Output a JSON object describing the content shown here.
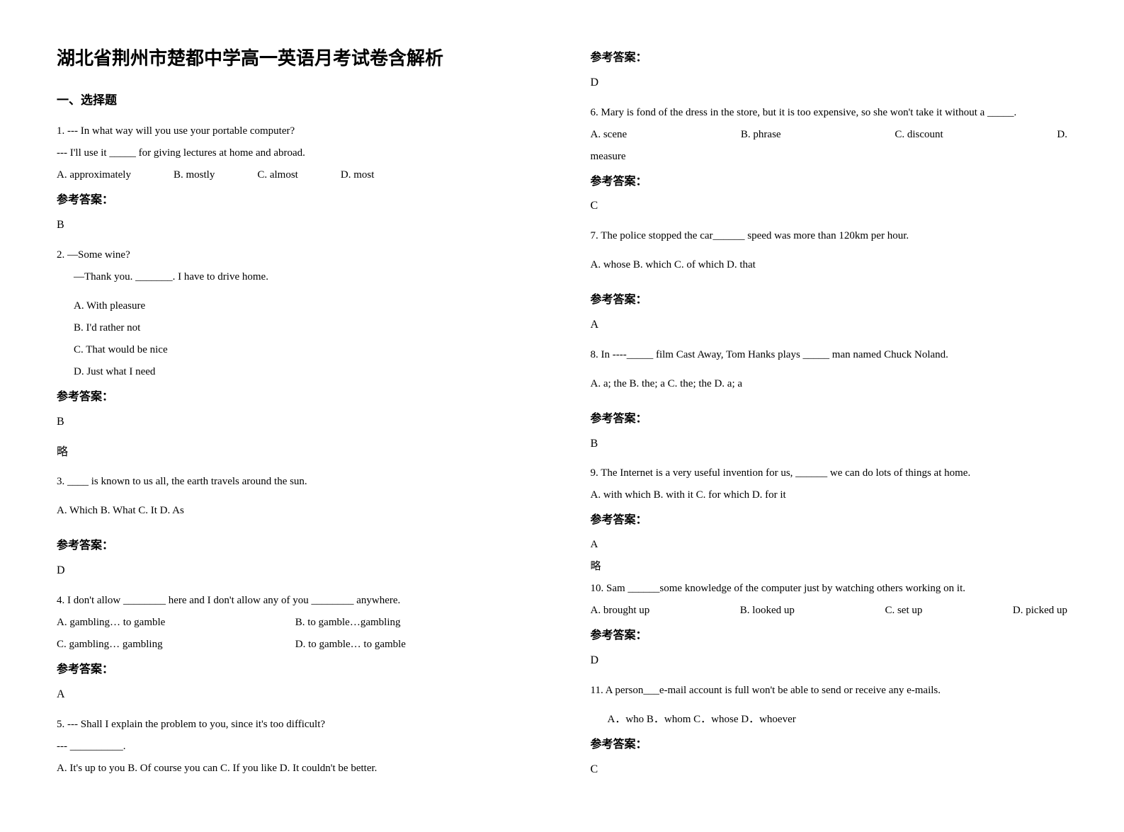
{
  "title": "湖北省荆州市楚都中学高一英语月考试卷含解析",
  "section1_heading": "一、选择题",
  "answer_label": "参考答案：",
  "note_omit": "略",
  "q1": {
    "line1": "1. --- In what way will you use your portable computer?",
    "line2": "--- I'll use it _____ for giving lectures at home and abroad.",
    "optA": "A. approximately",
    "optB": "B. mostly",
    "optC": "C. almost",
    "optD": "D. most",
    "answer": "B"
  },
  "q2": {
    "line1": "2. —Some wine?",
    "line2": "—Thank you. _______. I have to drive home.",
    "optA": "A. With pleasure",
    "optB": "B. I'd rather not",
    "optC": "C. That would be nice",
    "optD": "D. Just what I need",
    "answer": "B"
  },
  "q3": {
    "line1": "3. ____ is known to us all, the earth travels around the sun.",
    "opts": "A. Which    B. What    C. It    D. As",
    "answer": "D"
  },
  "q4": {
    "line1": "4. I don't allow ________ here and I don't allow any of you ________ anywhere.",
    "optA": "A. gambling… to gamble",
    "optB": "B. to gamble…gambling",
    "optC": "C. gambling… gambling",
    "optD": "D. to gamble… to gamble",
    "answer": "A"
  },
  "q5": {
    "line1": "5. --- Shall I explain the problem to you, since it's too difficult?",
    "line2": "--- __________.",
    "opts": "A. It's up to you   B. Of course you can   C. If you like   D. It couldn't be better.",
    "answer": "D"
  },
  "q6": {
    "line1": "6. Mary is fond of the dress in the store, but it is too expensive, so she won't take it without a _____.",
    "optA": "A.  scene",
    "optB": "B. phrase",
    "optC": "C. discount",
    "optD": "D. ",
    "line2": "measure",
    "answer": "C"
  },
  "q7": {
    "line1": "7. The police stopped the car______ speed was more than 120km per hour.",
    "opts": "A. whose   B. which    C. of which    D. that",
    "answer": "A"
  },
  "q8": {
    "line1": "8. In ----_____ film Cast Away, Tom Hanks plays _____ man named Chuck Noland.",
    "opts": "A. a; the   B. the; a        C. the; the    D. a; a",
    "answer": "B"
  },
  "q9": {
    "line1": "9. The Internet is a very useful invention for us, ______ we can do lots of things at home.",
    "opts": "  A. with which   B. with it   C. for which   D. for it",
    "answer": "A"
  },
  "q10": {
    "line1": "10. Sam ______some knowledge of the computer just by watching others working on it.",
    "optA": "A. brought up",
    "optB": "B. looked up",
    "optC": "C. set up",
    "optD": "D. picked up",
    "answer": "D"
  },
  "q11": {
    "line1": "11. A person___e-mail account is full won't be able to send or receive any e-mails.",
    "opts": "A．who   B．whom   C．whose   D．whoever",
    "answer": "C"
  }
}
